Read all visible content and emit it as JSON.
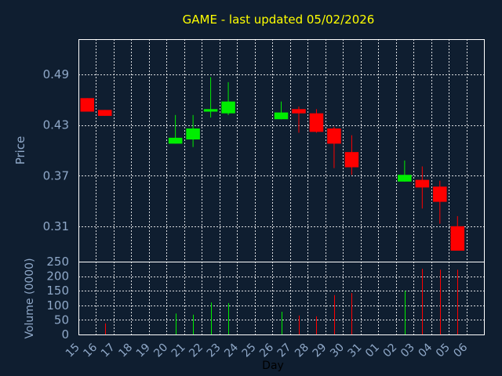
{
  "title": "GAME - last updated 05/02/2026",
  "colors": {
    "background": "#0f1e30",
    "title": "#ffff00",
    "axis_text": "#8fa8c8",
    "grid": "#ffffff",
    "up": "#00ee00",
    "down": "#ff0000"
  },
  "chart_data": [
    {
      "type": "candlestick",
      "ylabel": "Price",
      "ylim": [
        0.268,
        0.532
      ],
      "yticks": [
        "0.49",
        "0.43",
        "0.37",
        "0.31"
      ],
      "ytick_values": [
        0.49,
        0.43,
        0.37,
        0.31
      ],
      "grid": true,
      "candles": [
        {
          "day": "15",
          "open": 0.462,
          "high": 0.462,
          "low": 0.446,
          "close": 0.446
        },
        {
          "day": "16",
          "open": 0.448,
          "high": 0.448,
          "low": 0.441,
          "close": 0.441
        },
        {
          "day": "20",
          "open": 0.408,
          "high": 0.442,
          "low": 0.408,
          "close": 0.415
        },
        {
          "day": "21",
          "open": 0.413,
          "high": 0.442,
          "low": 0.404,
          "close": 0.426
        },
        {
          "day": "22",
          "open": 0.446,
          "high": 0.487,
          "low": 0.439,
          "close": 0.449
        },
        {
          "day": "23",
          "open": 0.444,
          "high": 0.481,
          "low": 0.442,
          "close": 0.458
        },
        {
          "day": "26",
          "open": 0.437,
          "high": 0.458,
          "low": 0.437,
          "close": 0.445
        },
        {
          "day": "27",
          "open": 0.449,
          "high": 0.452,
          "low": 0.421,
          "close": 0.444
        },
        {
          "day": "28",
          "open": 0.444,
          "high": 0.449,
          "low": 0.421,
          "close": 0.422
        },
        {
          "day": "29",
          "open": 0.426,
          "high": 0.428,
          "low": 0.379,
          "close": 0.408
        },
        {
          "day": "30",
          "open": 0.398,
          "high": 0.418,
          "low": 0.371,
          "close": 0.38
        },
        {
          "day": "02",
          "open": 0.363,
          "high": 0.388,
          "low": 0.363,
          "close": 0.371
        },
        {
          "day": "03",
          "open": 0.365,
          "high": 0.381,
          "low": 0.331,
          "close": 0.356
        },
        {
          "day": "04",
          "open": 0.357,
          "high": 0.364,
          "low": 0.313,
          "close": 0.339
        },
        {
          "day": "05",
          "open": 0.31,
          "high": 0.322,
          "low": 0.281,
          "close": 0.281
        }
      ]
    },
    {
      "type": "bar",
      "xlabel": "Day",
      "ylabel": "Volume (0000)",
      "ylim": [
        0,
        250
      ],
      "yticks": [
        "250",
        "200",
        "150",
        "100",
        "50",
        "0"
      ],
      "ytick_values": [
        250,
        200,
        150,
        100,
        50,
        0
      ],
      "categories": [
        "15",
        "16",
        "17",
        "18",
        "19",
        "20",
        "21",
        "22",
        "23",
        "24",
        "25",
        "26",
        "27",
        "28",
        "29",
        "30",
        "31",
        "01",
        "02",
        "03",
        "04",
        "05",
        "06"
      ],
      "volumes": [
        {
          "day": "16",
          "value": 38,
          "dir": "down"
        },
        {
          "day": "20",
          "value": 72,
          "dir": "up"
        },
        {
          "day": "21",
          "value": 68,
          "dir": "up"
        },
        {
          "day": "22",
          "value": 110,
          "dir": "up"
        },
        {
          "day": "23",
          "value": 108,
          "dir": "up"
        },
        {
          "day": "26",
          "value": 78,
          "dir": "up"
        },
        {
          "day": "27",
          "value": 65,
          "dir": "down"
        },
        {
          "day": "28",
          "value": 62,
          "dir": "down"
        },
        {
          "day": "29",
          "value": 135,
          "dir": "down"
        },
        {
          "day": "30",
          "value": 142,
          "dir": "down"
        },
        {
          "day": "02",
          "value": 150,
          "dir": "up"
        },
        {
          "day": "03",
          "value": 225,
          "dir": "down"
        },
        {
          "day": "04",
          "value": 222,
          "dir": "down"
        },
        {
          "day": "05",
          "value": 222,
          "dir": "down"
        }
      ]
    }
  ]
}
